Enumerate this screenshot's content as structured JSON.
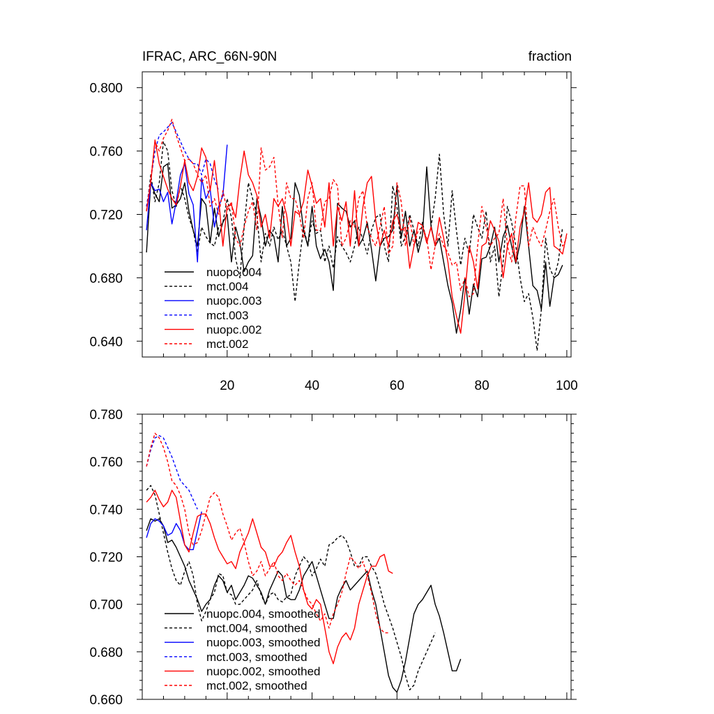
{
  "chart_data": [
    {
      "type": "line",
      "title": "IFRAC, ARC_66N-90N",
      "units": "fraction",
      "xlim": [
        0,
        101
      ],
      "ylim": [
        0.63,
        0.81
      ],
      "xticks": [
        20,
        40,
        60,
        80,
        100
      ],
      "yticks": [
        0.64,
        0.68,
        0.72,
        0.76,
        0.8
      ],
      "xtick_labels": [
        "20",
        "40",
        "60",
        "80",
        "100"
      ],
      "ytick_labels": [
        "0.640",
        "0.680",
        "0.720",
        "0.760",
        "0.800"
      ],
      "legend_position": "bottom-left",
      "series": [
        {
          "name": "nuopc.004",
          "color": "#000000",
          "dash": "solid",
          "values": [
            0.696,
            0.74,
            0.733,
            0.728,
            0.75,
            0.752,
            0.724,
            0.726,
            0.73,
            0.74,
            0.722,
            0.71,
            0.7,
            0.73,
            0.726,
            0.702,
            0.724,
            0.706,
            0.715,
            0.72,
            0.69,
            0.712,
            0.702,
            0.684,
            0.69,
            0.694,
            0.73,
            0.718,
            0.7,
            0.71,
            0.706,
            0.69,
            0.725,
            0.7,
            0.705,
            0.74,
            0.732,
            0.71,
            0.7,
            0.725,
            0.7,
            0.692,
            0.698,
            0.69,
            0.672,
            0.727,
            0.724,
            0.722,
            0.712,
            0.716,
            0.7,
            0.705,
            0.715,
            0.698,
            0.678,
            0.7,
            0.705,
            0.706,
            0.71,
            0.738,
            0.705,
            0.722,
            0.7,
            0.71,
            0.696,
            0.707,
            0.75,
            0.713,
            0.7,
            0.705,
            0.69,
            0.675,
            0.664,
            0.645,
            0.66,
            0.68,
            0.657,
            0.676,
            0.668,
            0.692,
            0.693,
            0.7,
            0.712,
            0.69,
            0.706,
            0.713,
            0.7,
            0.689,
            0.702,
            0.725,
            0.7,
            0.675,
            0.672,
            0.66,
            0.69,
            0.662,
            0.68,
            0.682,
            0.688
          ]
        },
        {
          "name": "mct.004",
          "color": "#000000",
          "dash": "dashed",
          "values": [
            0.722,
            0.745,
            0.728,
            0.74,
            0.766,
            0.76,
            0.735,
            0.725,
            0.738,
            0.73,
            0.718,
            0.71,
            0.696,
            0.712,
            0.706,
            0.702,
            0.7,
            0.712,
            0.715,
            0.73,
            0.718,
            0.692,
            0.68,
            0.712,
            0.74,
            0.73,
            0.72,
            0.69,
            0.708,
            0.7,
            0.712,
            0.704,
            0.71,
            0.7,
            0.69,
            0.665,
            0.69,
            0.712,
            0.7,
            0.716,
            0.708,
            0.71,
            0.69,
            0.7,
            0.686,
            0.706,
            0.7,
            0.696,
            0.69,
            0.7,
            0.712,
            0.704,
            0.695,
            0.71,
            0.718,
            0.72,
            0.7,
            0.69,
            0.738,
            0.725,
            0.7,
            0.706,
            0.72,
            0.71,
            0.7,
            0.715,
            0.702,
            0.712,
            0.73,
            0.758,
            0.72,
            0.7,
            0.735,
            0.71,
            0.688,
            0.705,
            0.695,
            0.72,
            0.712,
            0.705,
            0.722,
            0.69,
            0.7,
            0.668,
            0.69,
            0.725,
            0.715,
            0.7,
            0.68,
            0.665,
            0.67,
            0.655,
            0.634,
            0.66,
            0.705,
            0.686,
            0.68,
            0.69,
            0.712
          ]
        },
        {
          "name": "nuopc.003",
          "color": "#0000ff",
          "dash": "solid",
          "values": [
            0.71,
            0.74,
            0.735,
            0.736,
            0.728,
            0.734,
            0.714,
            0.728,
            0.745,
            0.752,
            0.733,
            0.726,
            0.69,
            0.743,
            0.73,
            0.736,
            0.712,
            0.725,
            0.732,
            0.764
          ]
        },
        {
          "name": "mct.003",
          "color": "#0000ff",
          "dash": "dashed",
          "values": [
            0.725,
            0.742,
            0.76,
            0.77,
            0.772,
            0.775,
            0.778,
            0.772,
            0.766,
            0.76,
            0.755,
            0.752,
            0.752,
            0.745,
            0.755,
            0.752,
            0.742,
            0.735
          ]
        },
        {
          "name": "nuopc.002",
          "color": "#ff0000",
          "dash": "solid",
          "values": [
            0.722,
            0.74,
            0.767,
            0.752,
            0.744,
            0.736,
            0.73,
            0.726,
            0.738,
            0.754,
            0.74,
            0.735,
            0.744,
            0.762,
            0.756,
            0.735,
            0.754,
            0.73,
            0.7,
            0.725,
            0.726,
            0.718,
            0.742,
            0.76,
            0.745,
            0.74,
            0.732,
            0.712,
            0.72,
            0.705,
            0.73,
            0.725,
            0.73,
            0.72,
            0.7,
            0.722,
            0.72,
            0.728,
            0.748,
            0.738,
            0.727,
            0.73,
            0.712,
            0.74,
            0.7,
            0.725,
            0.716,
            0.728,
            0.7,
            0.735,
            0.7,
            0.725,
            0.74,
            0.744,
            0.716,
            0.7,
            0.71,
            0.7,
            0.716,
            0.72,
            0.71,
            0.712,
            0.686,
            0.7,
            0.715,
            0.713,
            0.702,
            0.712,
            0.7,
            0.718,
            0.705,
            0.69,
            0.668,
            0.656,
            0.645,
            0.67,
            0.7,
            0.69,
            0.673,
            0.7,
            0.702,
            0.716,
            0.71,
            0.703,
            0.68,
            0.7,
            0.708,
            0.69,
            0.712,
            0.722,
            0.74,
            0.718,
            0.715,
            0.72,
            0.734,
            0.737,
            0.7,
            0.698,
            0.695,
            0.708
          ]
        },
        {
          "name": "mct.002",
          "color": "#ff0000",
          "dash": "dashed",
          "values": [
            0.722,
            0.742,
            0.766,
            0.76,
            0.768,
            0.773,
            0.78,
            0.77,
            0.762,
            0.754,
            0.755,
            0.752,
            0.745,
            0.74,
            0.745,
            0.725,
            0.73,
            0.72,
            0.735,
            0.722,
            0.728,
            0.705,
            0.7,
            0.712,
            0.722,
            0.728,
            0.71,
            0.762,
            0.748,
            0.75,
            0.756,
            0.726,
            0.705,
            0.74,
            0.73,
            0.73,
            0.72,
            0.705,
            0.73,
            0.74,
            0.71,
            0.71,
            0.728,
            0.73,
            0.742,
            0.738,
            0.7,
            0.705,
            0.716,
            0.712,
            0.73,
            0.735,
            0.712,
            0.705,
            0.7,
            0.712,
            0.725,
            0.695,
            0.7,
            0.74,
            0.728,
            0.7,
            0.718,
            0.7,
            0.71,
            0.712,
            0.705,
            0.685,
            0.7,
            0.708,
            0.7,
            0.696,
            0.688,
            0.69,
            0.672,
            0.68,
            0.668,
            0.67,
            0.7,
            0.725,
            0.712,
            0.7,
            0.705,
            0.708,
            0.73,
            0.7,
            0.69,
            0.718,
            0.738,
            0.738,
            0.7,
            0.712,
            0.705,
            0.7,
            0.71,
            0.722,
            0.73,
            0.712,
            0.7,
            0.705
          ]
        }
      ]
    },
    {
      "type": "line",
      "title": "",
      "units": "",
      "xlim": [
        0,
        101
      ],
      "ylim": [
        0.66,
        0.78
      ],
      "xticks": [
        20,
        40,
        60,
        80,
        100
      ],
      "yticks": [
        0.66,
        0.68,
        0.7,
        0.72,
        0.74,
        0.76,
        0.78
      ],
      "xtick_labels": [],
      "ytick_labels": [
        "0.660",
        "0.680",
        "0.700",
        "0.720",
        "0.740",
        "0.760",
        "0.780"
      ],
      "legend_position": "bottom-left",
      "series": [
        {
          "name": "nuopc.004, smoothed",
          "color": "#000000",
          "dash": "solid",
          "values": [
            0.731,
            0.736,
            0.735,
            0.736,
            0.733,
            0.726,
            0.727,
            0.724,
            0.72,
            0.716,
            0.71,
            0.706,
            0.702,
            0.697,
            0.7,
            0.702,
            0.708,
            0.712,
            0.71,
            0.705,
            0.708,
            0.702,
            0.705,
            0.708,
            0.712,
            0.711,
            0.708,
            0.705,
            0.7,
            0.706,
            0.71,
            0.714,
            0.712,
            0.703,
            0.702,
            0.702,
            0.706,
            0.712,
            0.715,
            0.718,
            0.712,
            0.706,
            0.7,
            0.694,
            0.694,
            0.703,
            0.707,
            0.71,
            0.706,
            0.708,
            0.71,
            0.712,
            0.714,
            0.706,
            0.7,
            0.69,
            0.68,
            0.67,
            0.665,
            0.663,
            0.668,
            0.676,
            0.686,
            0.696,
            0.7,
            0.702,
            0.705,
            0.708,
            0.7,
            0.695,
            0.688,
            0.68,
            0.672,
            0.672,
            0.677
          ]
        },
        {
          "name": "mct.004, smoothed",
          "color": "#000000",
          "dash": "dashed",
          "values": [
            0.748,
            0.75,
            0.746,
            0.738,
            0.73,
            0.722,
            0.715,
            0.71,
            0.708,
            0.714,
            0.718,
            0.712,
            0.7,
            0.693,
            0.697,
            0.702,
            0.705,
            0.713,
            0.712,
            0.705,
            0.704,
            0.7,
            0.7,
            0.702,
            0.704,
            0.706,
            0.71,
            0.704,
            0.7,
            0.704,
            0.705,
            0.702,
            0.701,
            0.703,
            0.704,
            0.712,
            0.716,
            0.72,
            0.718,
            0.712,
            0.715,
            0.719,
            0.716,
            0.725,
            0.726,
            0.728,
            0.729,
            0.727,
            0.722,
            0.716,
            0.716,
            0.72,
            0.72,
            0.716,
            0.713,
            0.707,
            0.7,
            0.695,
            0.69,
            0.684,
            0.678,
            0.67,
            0.664,
            0.666,
            0.672,
            0.676,
            0.68,
            0.684,
            0.688
          ]
        },
        {
          "name": "nuopc.003, smoothed",
          "color": "#0000ff",
          "dash": "solid",
          "values": [
            0.728,
            0.734,
            0.736,
            0.735,
            0.733,
            0.729,
            0.73,
            0.734,
            0.731,
            0.725,
            0.723,
            0.723,
            0.731,
            0.739
          ]
        },
        {
          "name": "mct.003, smoothed",
          "color": "#0000ff",
          "dash": "dashed",
          "values": [
            0.758,
            0.765,
            0.77,
            0.771,
            0.77,
            0.766,
            0.762,
            0.757,
            0.752,
            0.75,
            0.748,
            0.744,
            0.74
          ]
        },
        {
          "name": "nuopc.002, smoothed",
          "color": "#ff0000",
          "dash": "solid",
          "values": [
            0.743,
            0.745,
            0.748,
            0.744,
            0.741,
            0.743,
            0.748,
            0.745,
            0.735,
            0.725,
            0.722,
            0.73,
            0.737,
            0.738,
            0.738,
            0.734,
            0.728,
            0.723,
            0.72,
            0.717,
            0.718,
            0.715,
            0.722,
            0.726,
            0.73,
            0.736,
            0.73,
            0.724,
            0.722,
            0.716,
            0.716,
            0.72,
            0.722,
            0.726,
            0.729,
            0.722,
            0.716,
            0.706,
            0.7,
            0.698,
            0.702,
            0.7,
            0.69,
            0.68,
            0.675,
            0.682,
            0.686,
            0.688,
            0.685,
            0.69,
            0.7,
            0.706,
            0.712,
            0.716,
            0.716,
            0.72,
            0.721,
            0.714,
            0.713
          ]
        },
        {
          "name": "mct.002, smoothed",
          "color": "#ff0000",
          "dash": "dashed",
          "values": [
            0.758,
            0.766,
            0.772,
            0.77,
            0.766,
            0.76,
            0.752,
            0.75,
            0.746,
            0.74,
            0.73,
            0.725,
            0.726,
            0.731,
            0.738,
            0.745,
            0.747,
            0.745,
            0.738,
            0.733,
            0.727,
            0.73,
            0.732,
            0.726,
            0.718,
            0.712,
            0.714,
            0.718,
            0.712,
            0.715,
            0.718,
            0.712,
            0.71,
            0.713,
            0.71,
            0.708,
            0.71,
            0.706,
            0.702,
            0.7,
            0.696,
            0.693,
            0.696,
            0.69,
            0.696,
            0.7,
            0.705,
            0.713,
            0.72,
            0.718,
            0.715,
            0.718,
            0.712,
            0.705,
            0.696,
            0.69,
            0.688,
            0.688
          ]
        }
      ]
    }
  ]
}
